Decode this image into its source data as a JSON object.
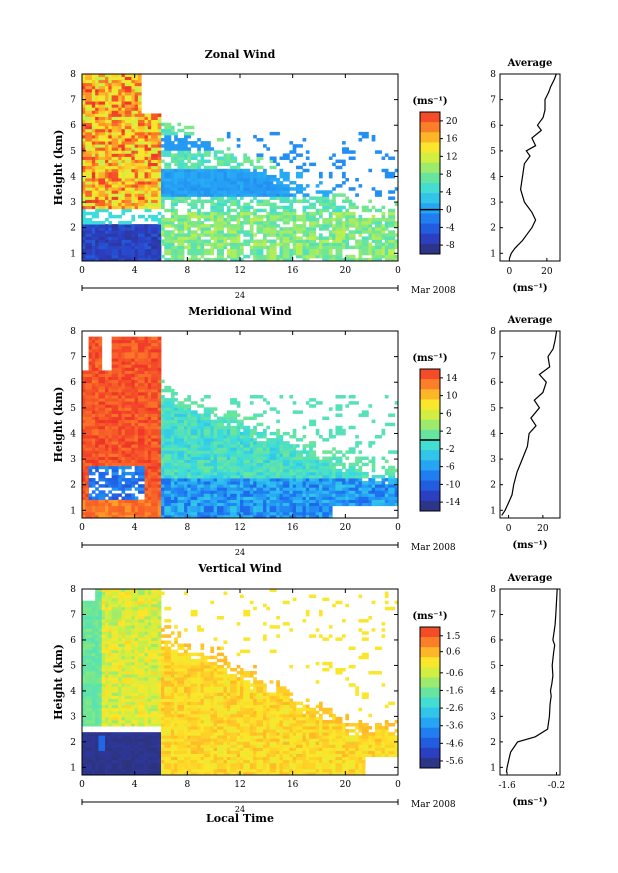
{
  "page": {
    "background": "#ffffff"
  },
  "chart_data": [
    {
      "id": "zonal",
      "type": "heatmap",
      "title": "Zonal Wind",
      "ylabel": "Height (km)",
      "xlabel": "",
      "xticks": [
        "0",
        "4",
        "8",
        "12",
        "16",
        "20",
        "0"
      ],
      "xlim": [
        0,
        24
      ],
      "ylim": [
        0.7,
        8
      ],
      "yticks": [
        "1",
        "2",
        "3",
        "4",
        "5",
        "6",
        "7",
        "8"
      ],
      "date_tick_label": "24",
      "date_label": "Mar 2008",
      "colorbar": {
        "unit": "(ms⁻¹)",
        "ticks": [
          "20",
          "16",
          "12",
          "8",
          "4",
          "0",
          "-4",
          "-8"
        ],
        "range": [
          -10,
          22
        ],
        "zero_line": 0
      },
      "average": {
        "title": "Average",
        "xlabel": "(ms⁻¹)",
        "xticks": [
          "0",
          "20"
        ],
        "xlim": [
          -5,
          27
        ],
        "heights": [
          0.8,
          1.0,
          1.2,
          1.5,
          1.8,
          2.0,
          2.3,
          2.6,
          3.0,
          3.5,
          4.0,
          4.5,
          4.8,
          5.0,
          5.2,
          5.5,
          5.8,
          6.0,
          6.3,
          6.6,
          7.0,
          7.3,
          7.5,
          7.8,
          8.0
        ],
        "values": [
          0,
          1,
          3,
          7,
          10,
          12,
          14,
          12,
          8,
          6,
          7,
          8,
          11,
          9,
          14,
          12,
          17,
          15,
          18,
          19,
          19,
          21,
          22,
          24,
          25
        ]
      }
    },
    {
      "id": "meridional",
      "type": "heatmap",
      "title": "Meridional Wind",
      "ylabel": "Height (km)",
      "xlabel": "",
      "xticks": [
        "0",
        "4",
        "8",
        "12",
        "16",
        "20",
        "0"
      ],
      "xlim": [
        0,
        24
      ],
      "ylim": [
        0.7,
        8
      ],
      "yticks": [
        "1",
        "2",
        "3",
        "4",
        "5",
        "6",
        "7",
        "8"
      ],
      "date_tick_label": "24",
      "date_label": "Mar 2008",
      "colorbar": {
        "unit": "(ms⁻¹)",
        "ticks": [
          "14",
          "10",
          "6",
          "2",
          "-2",
          "-6",
          "-10",
          "-14"
        ],
        "range": [
          -16,
          16
        ],
        "zero_line": 0
      },
      "average": {
        "title": "Average",
        "xlabel": "(ms⁻¹)",
        "xticks": [
          "0",
          "20"
        ],
        "xlim": [
          -5,
          30
        ],
        "heights": [
          0.8,
          1.0,
          1.3,
          1.6,
          2.0,
          2.5,
          3.0,
          3.5,
          4.0,
          4.3,
          4.6,
          5.0,
          5.3,
          5.6,
          6.0,
          6.3,
          6.6,
          7.0,
          7.3,
          7.6,
          8.0
        ],
        "values": [
          -4,
          -2,
          0,
          2,
          3,
          5,
          8,
          11,
          12,
          16,
          13,
          18,
          15,
          20,
          22,
          18,
          24,
          23,
          26,
          27,
          28
        ]
      }
    },
    {
      "id": "vertical",
      "type": "heatmap",
      "title": "Vertical Wind",
      "ylabel": "Height (km)",
      "xlabel": "Local Time",
      "xticks": [
        "0",
        "4",
        "8",
        "12",
        "16",
        "20",
        "0"
      ],
      "xlim": [
        0,
        24
      ],
      "ylim": [
        0.7,
        8
      ],
      "yticks": [
        "1",
        "2",
        "3",
        "4",
        "5",
        "6",
        "7",
        "8"
      ],
      "date_tick_label": "24",
      "date_label": "Mar 2008",
      "colorbar": {
        "unit": "(ms⁻¹)",
        "ticks": [
          "1.5",
          "0.6",
          "-0.6",
          "-1.6",
          "-2.6",
          "-3.6",
          "-4.6",
          "-5.6"
        ],
        "range": [
          -6,
          2
        ],
        "zero_line": null
      },
      "average": {
        "title": "Average",
        "xlabel": "(ms⁻¹)",
        "xticks": [
          "-1.6",
          "-0.2"
        ],
        "xlim": [
          -1.8,
          -0.1
        ],
        "heights": [
          0.8,
          1.0,
          1.3,
          1.6,
          2.0,
          2.2,
          2.5,
          3.0,
          3.5,
          3.8,
          4.0,
          4.3,
          4.6,
          5.0,
          5.5,
          5.8,
          6.0,
          6.3,
          6.6,
          7.0,
          7.5,
          8.0
        ],
        "values": [
          -1.62,
          -1.6,
          -1.55,
          -1.5,
          -1.3,
          -0.8,
          -0.45,
          -0.4,
          -0.38,
          -0.35,
          -0.37,
          -0.33,
          -0.3,
          -0.32,
          -0.28,
          -0.25,
          -0.3,
          -0.27,
          -0.24,
          -0.22,
          -0.2,
          -0.18
        ]
      }
    }
  ]
}
